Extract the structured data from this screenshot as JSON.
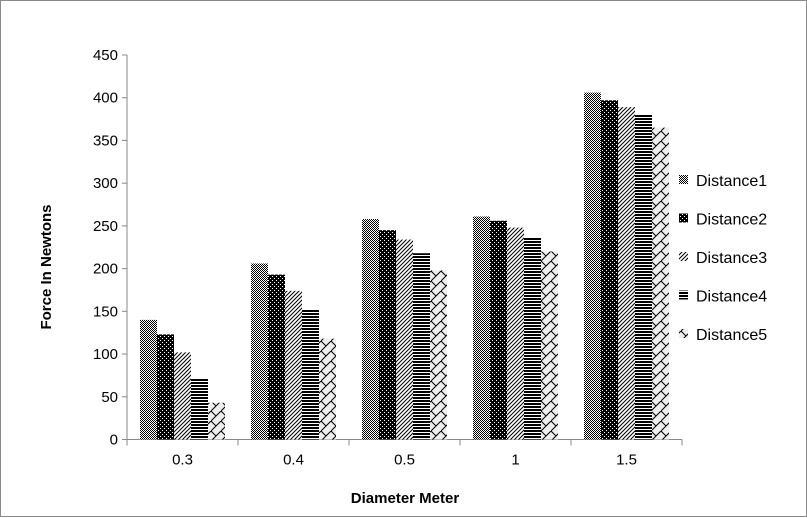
{
  "chart_data": {
    "type": "bar",
    "title": "",
    "xlabel": "Diameter Meter",
    "ylabel": "Force In Newtons",
    "categories": [
      "0.3",
      "0.4",
      "0.5",
      "1",
      "1.5"
    ],
    "ylim": [
      0,
      450
    ],
    "yticks": [
      0,
      50,
      100,
      150,
      200,
      250,
      300,
      350,
      400,
      450
    ],
    "grid": false,
    "legend": "right",
    "series": [
      {
        "name": "Distance1",
        "pattern": "fine-checker",
        "values": [
          140,
          206,
          258,
          261,
          406
        ]
      },
      {
        "name": "Distance2",
        "pattern": "dark-dotted",
        "values": [
          123,
          193,
          245,
          256,
          397
        ]
      },
      {
        "name": "Distance3",
        "pattern": "diagonal-stripes",
        "values": [
          102,
          174,
          234,
          248,
          389
        ]
      },
      {
        "name": "Distance4",
        "pattern": "horizontal-stripes",
        "values": [
          72,
          152,
          218,
          237,
          380
        ]
      },
      {
        "name": "Distance5",
        "pattern": "zigzag",
        "values": [
          43,
          118,
          198,
          220,
          365
        ]
      }
    ]
  }
}
